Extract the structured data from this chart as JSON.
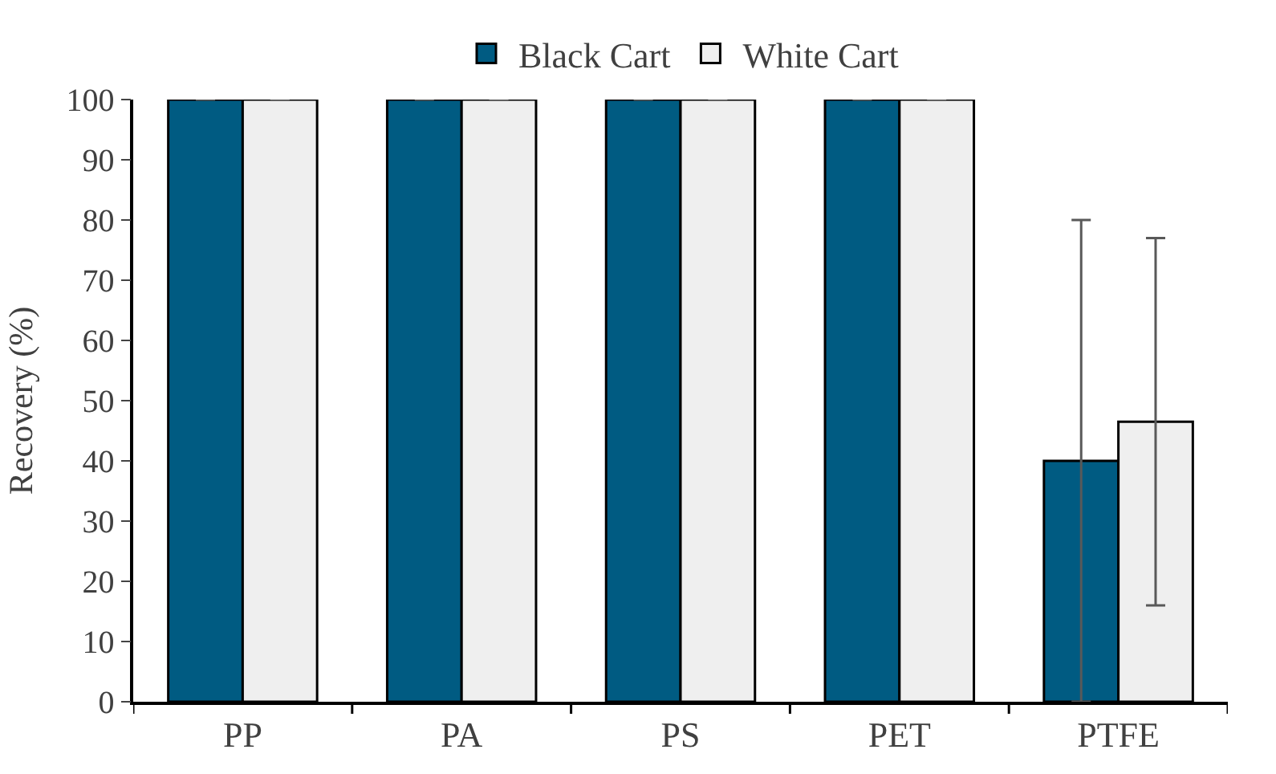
{
  "chart_data": {
    "type": "bar",
    "ylabel": "Recovery (%)",
    "categories": [
      "PP",
      "PA",
      "PS",
      "PET",
      "PTFE"
    ],
    "series": [
      {
        "name": "Black Cart",
        "color": "#005b82",
        "values": [
          100,
          100,
          100,
          100,
          40
        ],
        "errors": [
          0,
          0,
          0,
          0,
          [
            0,
            80
          ]
        ]
      },
      {
        "name": "White Cart",
        "color": "#efefef",
        "values": [
          100,
          100,
          100,
          100,
          46.5
        ],
        "errors": [
          0,
          0,
          0,
          0,
          [
            16,
            77
          ]
        ]
      }
    ],
    "ylim": [
      0,
      100
    ],
    "yticks": [
      0,
      10,
      20,
      30,
      40,
      50,
      60,
      70,
      80,
      90,
      100
    ],
    "legend": "top"
  }
}
